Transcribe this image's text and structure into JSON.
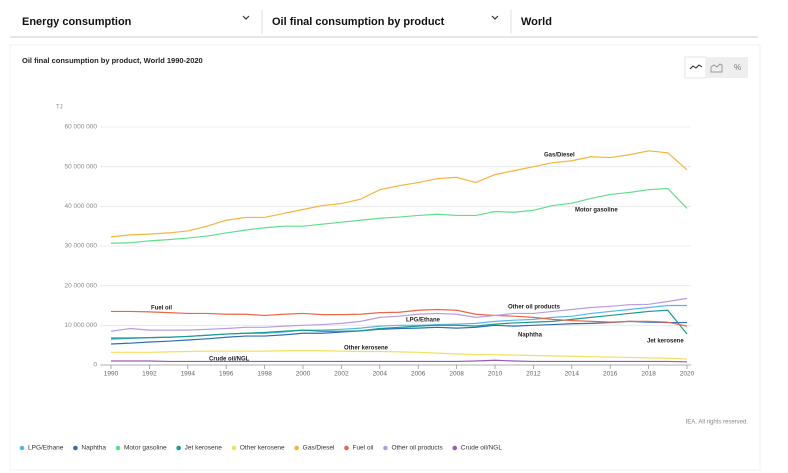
{
  "header": {
    "dropdowns": [
      "Energy consumption",
      "Oil final consumption by product",
      "World"
    ]
  },
  "toolbar": {
    "percent": "%"
  },
  "chart_data": {
    "type": "line",
    "title": "Oil final consumption by product, World 1990-2020",
    "y_unit": "TJ",
    "source": "IEA. All rights reserved.",
    "x": [
      1990,
      1991,
      1992,
      1993,
      1994,
      1995,
      1996,
      1997,
      1998,
      1999,
      2000,
      2001,
      2002,
      2003,
      2004,
      2005,
      2006,
      2007,
      2008,
      2009,
      2010,
      2011,
      2012,
      2013,
      2014,
      2015,
      2016,
      2017,
      2018,
      2019,
      2020
    ],
    "xlim": [
      1990,
      2020
    ],
    "xticks": [
      1990,
      1992,
      1994,
      1996,
      1998,
      2000,
      2002,
      2004,
      2006,
      2008,
      2010,
      2012,
      2014,
      2016,
      2018,
      2020
    ],
    "ylim": [
      0,
      60000000
    ],
    "yticks": [
      0,
      {
        "value": 10000000,
        "label": "10 000 000"
      },
      {
        "value": 20000000,
        "label": "20 000 000"
      },
      {
        "value": 30000000,
        "label": "30 000 000"
      },
      {
        "value": 40000000,
        "label": "40 000 000"
      },
      {
        "value": 50000000,
        "label": "50 000 000"
      },
      {
        "value": 60000000,
        "label": "60 000 000"
      }
    ],
    "grid": true,
    "series": [
      {
        "name": "LPG/Ethane",
        "color": "#5bb5e5",
        "values": [
          6500000,
          6700000,
          6900000,
          7000000,
          7200000,
          7500000,
          7800000,
          8000000,
          8000000,
          8300000,
          8800000,
          8800000,
          9000000,
          9300000,
          9800000,
          10000000,
          10000000,
          10200000,
          10300000,
          10500000,
          11000000,
          11300000,
          11500000,
          12000000,
          12300000,
          13000000,
          13500000,
          14000000,
          14500000,
          15000000,
          15000000
        ]
      },
      {
        "name": "Naphtha",
        "color": "#2f6db5",
        "values": [
          5300000,
          5500000,
          5800000,
          6000000,
          6300000,
          6600000,
          7000000,
          7300000,
          7300000,
          7600000,
          8000000,
          8000000,
          8300000,
          8600000,
          9000000,
          9200000,
          9300000,
          9500000,
          9300000,
          9500000,
          10000000,
          9800000,
          10000000,
          10200000,
          10400000,
          10500000,
          10700000,
          11000000,
          10800000,
          10700000,
          10700000
        ]
      },
      {
        "name": "Motor gasoline",
        "color": "#5fdf8a",
        "values": [
          30700000,
          30800000,
          31300000,
          31600000,
          32000000,
          32500000,
          33300000,
          34000000,
          34600000,
          35000000,
          35000000,
          35500000,
          36000000,
          36500000,
          37000000,
          37300000,
          37700000,
          38000000,
          37700000,
          37700000,
          38700000,
          38500000,
          39000000,
          40200000,
          40800000,
          42000000,
          43000000,
          43500000,
          44200000,
          44500000,
          39500000
        ]
      },
      {
        "name": "Jet kerosene",
        "color": "#1a9c8e",
        "values": [
          6800000,
          6800000,
          6900000,
          7000000,
          7200000,
          7500000,
          7800000,
          8000000,
          8200000,
          8500000,
          8800000,
          8500000,
          8500000,
          8600000,
          9200000,
          9500000,
          9800000,
          10000000,
          10000000,
          9800000,
          10300000,
          10600000,
          10800000,
          11000000,
          11500000,
          12000000,
          12500000,
          13000000,
          13500000,
          13800000,
          7800000
        ]
      },
      {
        "name": "Other kerosene",
        "color": "#f0e060",
        "values": [
          3200000,
          3200000,
          3200000,
          3300000,
          3400000,
          3500000,
          3500000,
          3500000,
          3500000,
          3600000,
          3600000,
          3600000,
          3500000,
          3400000,
          3400000,
          3300000,
          3200000,
          3000000,
          2800000,
          2600000,
          2600000,
          2500000,
          2400000,
          2300000,
          2200000,
          2100000,
          2000000,
          1900000,
          1800000,
          1700000,
          1500000
        ]
      },
      {
        "name": "Gas/Diesel",
        "color": "#f5b43c",
        "values": [
          32300000,
          32800000,
          33000000,
          33300000,
          33800000,
          35000000,
          36500000,
          37200000,
          37200000,
          38200000,
          39200000,
          40200000,
          40700000,
          41800000,
          44200000,
          45200000,
          46000000,
          47000000,
          47300000,
          46000000,
          48000000,
          49000000,
          50000000,
          51000000,
          51500000,
          52500000,
          52300000,
          53000000,
          54000000,
          53500000,
          49200000
        ]
      },
      {
        "name": "Fuel oil",
        "color": "#e8664a",
        "values": [
          13500000,
          13500000,
          13400000,
          13200000,
          13000000,
          13000000,
          12800000,
          12800000,
          12500000,
          12800000,
          13000000,
          12700000,
          12700000,
          12800000,
          13200000,
          13300000,
          13800000,
          14000000,
          13800000,
          12800000,
          12500000,
          12300000,
          12000000,
          11500000,
          11200000,
          11000000,
          10800000,
          11000000,
          11000000,
          10800000,
          9800000
        ]
      },
      {
        "name": "Other oil products",
        "color": "#b89ce0",
        "values": [
          8500000,
          9200000,
          8800000,
          8800000,
          8800000,
          9000000,
          9200000,
          9500000,
          9500000,
          9800000,
          10000000,
          10200000,
          10500000,
          11000000,
          12000000,
          12300000,
          12800000,
          13000000,
          12800000,
          12000000,
          12500000,
          13000000,
          13000000,
          13500000,
          14000000,
          14500000,
          14800000,
          15200000,
          15300000,
          16000000,
          16800000
        ]
      },
      {
        "name": "Crude oil/NGL",
        "color": "#9b59b6",
        "values": [
          1000000,
          1000000,
          1000000,
          900000,
          900000,
          900000,
          900000,
          900000,
          900000,
          900000,
          900000,
          900000,
          900000,
          900000,
          900000,
          900000,
          900000,
          900000,
          900000,
          1000000,
          1200000,
          1000000,
          900000,
          900000,
          900000,
          900000,
          900000,
          900000,
          900000,
          900000,
          800000
        ]
      }
    ]
  }
}
